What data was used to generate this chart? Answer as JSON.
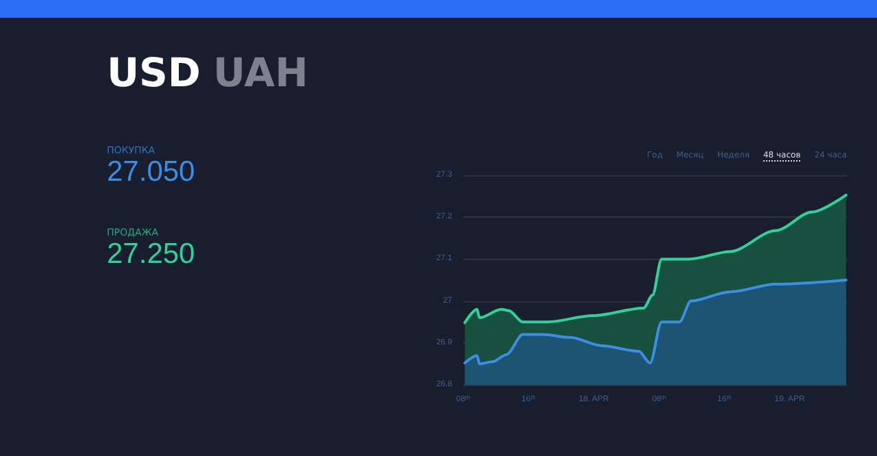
{
  "chart_data": {
    "type": "area",
    "title": "USD",
    "subtitle": "UAH",
    "annotations": [
      "27.050",
      "27.250",
      "Год",
      "Месяц",
      "Неделя",
      "48 часов",
      "24 часа"
    ],
    "series": [
      {
        "name": "ПРОДАЖА",
        "color": "#2ed39a",
        "x": [
          "--04-17T08:12",
          "--04-17T09:42",
          "--04-17T10:00",
          "--04-17T12:42",
          "--04-17T13:36",
          "--04-17T15:18",
          "--04-17T18:18",
          "--04-17T23:54",
          "--04-18T06:06",
          "--04-18T07:12",
          "--04-18T08:18",
          "--04-18T11:42",
          "--04-18T16:42",
          "--04-18T22:18",
          "--04-19T02:42",
          "--04-19T06:54"
        ],
        "values": [
          26.948,
          26.98,
          26.96,
          26.98,
          26.977,
          26.95,
          26.95,
          26.965,
          26.983,
          27.014,
          27.1,
          27.1,
          27.118,
          27.168,
          27.212,
          27.253
        ]
      },
      {
        "name": "ПОКУПКА",
        "color": "#3a8ee6",
        "x": [
          "--04-17T08:12",
          "--04-17T09:42",
          "--04-17T10:00",
          "--04-17T11:36",
          "--04-17T13:18",
          "--04-17T15:18",
          "--04-17T17:48",
          "--04-17T21:06",
          "--04-18T01:00",
          "--04-18T05:30",
          "--04-18T06:54",
          "--04-18T08:18",
          "--04-18T10:30",
          "--04-18T11:54",
          "--04-18T16:42",
          "--04-18T22:18",
          "--04-19T06:54"
        ],
        "values": [
          26.852,
          26.87,
          26.85,
          26.855,
          26.872,
          26.92,
          26.92,
          26.913,
          26.893,
          26.88,
          26.852,
          26.95,
          26.95,
          27.0,
          27.022,
          27.04,
          27.05
        ]
      }
    ],
    "xlim": [
      "--04-17T08:00",
      "--04-19T07:00"
    ],
    "xticks": [
      {
        "value": "--04-17T08:00",
        "label": "08ᵗʰ"
      },
      {
        "value": "--04-17T16:00",
        "label": "16ᵗʰ"
      },
      {
        "value": "--04-18T00:00",
        "label": "18. APR"
      },
      {
        "value": "--04-18T08:00",
        "label": "08ᵗʰ"
      },
      {
        "value": "--04-18T16:00",
        "label": "16ᵗʰ"
      },
      {
        "value": "--04-19T00:00",
        "label": "19. APR"
      }
    ],
    "ylim": [
      26.8,
      27.3
    ],
    "yticks": [
      26.8,
      26.9,
      27,
      27.1,
      27.2,
      27.3
    ],
    "grid": "y",
    "legend": "left"
  }
}
